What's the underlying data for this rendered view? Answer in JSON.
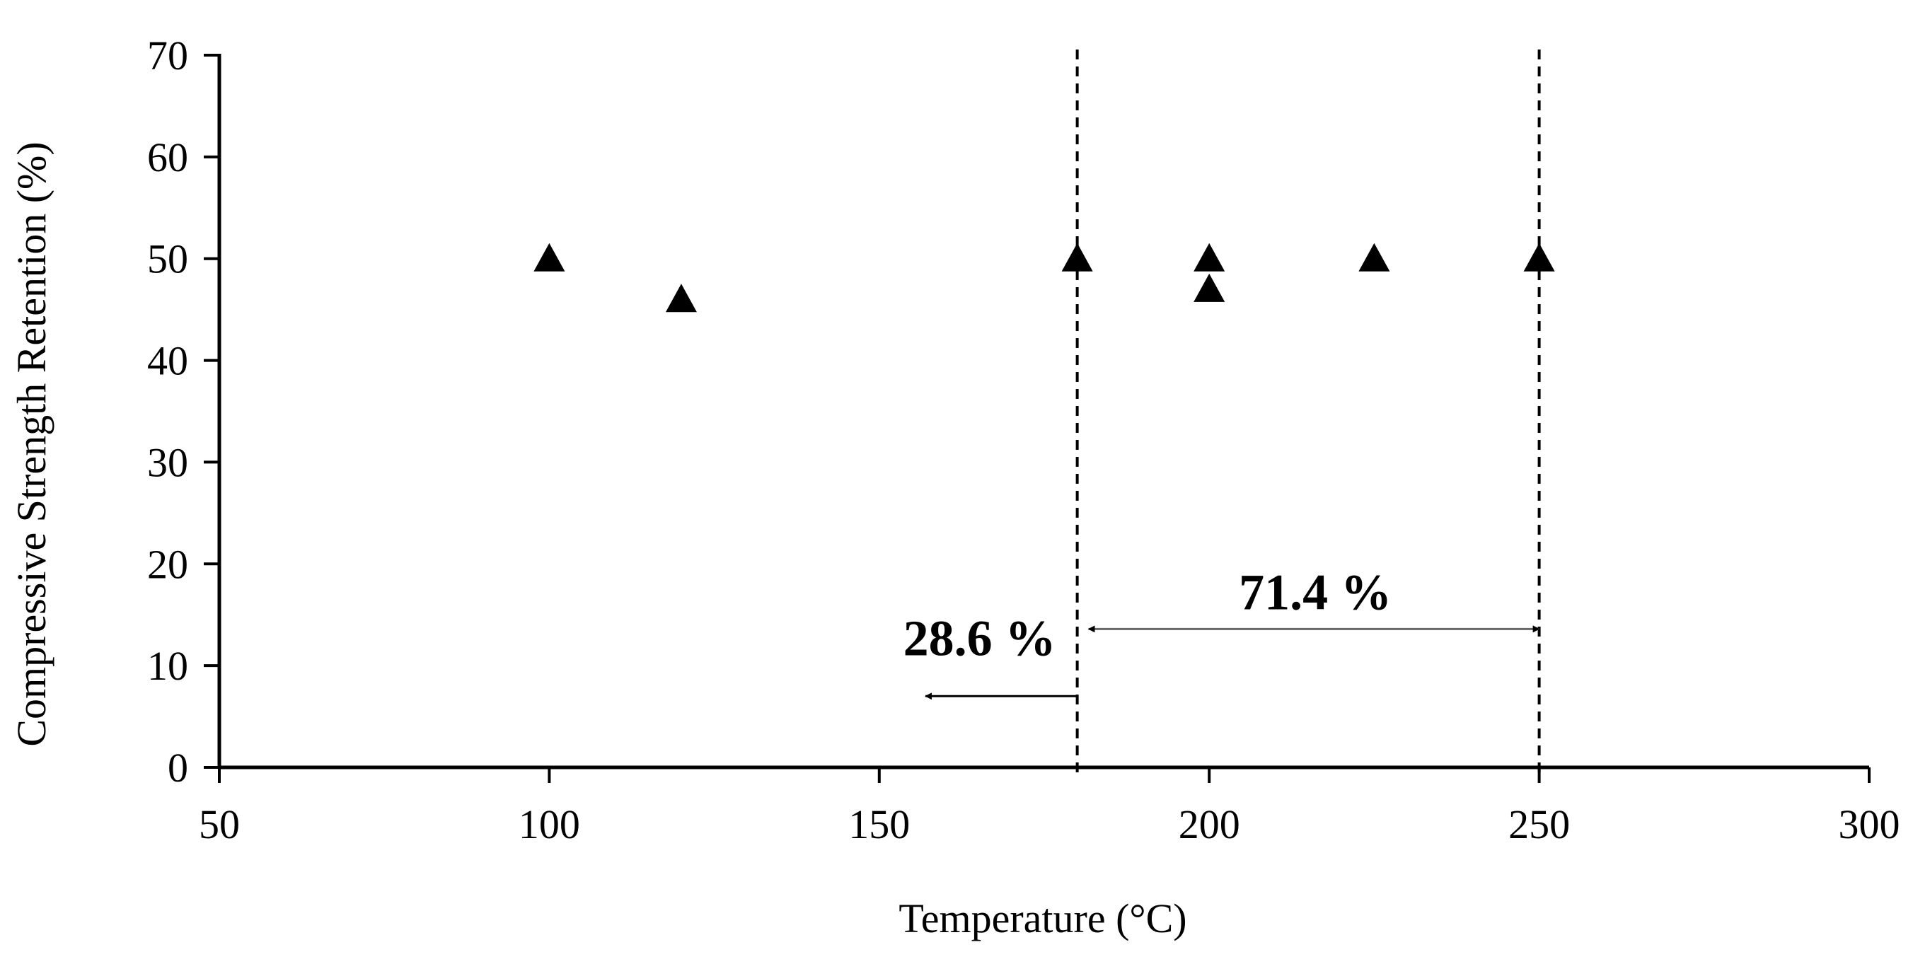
{
  "chart_data": {
    "type": "scatter",
    "title": "",
    "xlabel": "Temperature (°C)",
    "ylabel": "Compressive Strength Retention (%)",
    "xlim": [
      50,
      300
    ],
    "ylim": [
      0,
      70
    ],
    "xticks": [
      50,
      100,
      150,
      200,
      250,
      300
    ],
    "yticks": [
      0,
      10,
      20,
      30,
      40,
      50,
      60,
      70
    ],
    "grid": false,
    "series": [
      {
        "name": "data",
        "marker": "triangle",
        "color": "#000000",
        "points": [
          {
            "x": 100,
            "y": 50
          },
          {
            "x": 120,
            "y": 46
          },
          {
            "x": 180,
            "y": 50
          },
          {
            "x": 200,
            "y": 50
          },
          {
            "x": 200,
            "y": 47
          },
          {
            "x": 225,
            "y": 50
          },
          {
            "x": 250,
            "y": 50
          }
        ]
      }
    ],
    "reference_lines": [
      {
        "x": 180,
        "style": "dashed"
      },
      {
        "x": 250,
        "style": "dashed"
      }
    ],
    "annotations": [
      {
        "label": "28.6 %",
        "arrow_from_x": 180,
        "arrow_to_x": 157,
        "arrow_y": 7,
        "direction": "left"
      },
      {
        "label": "71.4 %",
        "arrow_from_x": 180,
        "arrow_to_x": 250,
        "arrow_y": 13.6,
        "direction": "both"
      }
    ]
  }
}
